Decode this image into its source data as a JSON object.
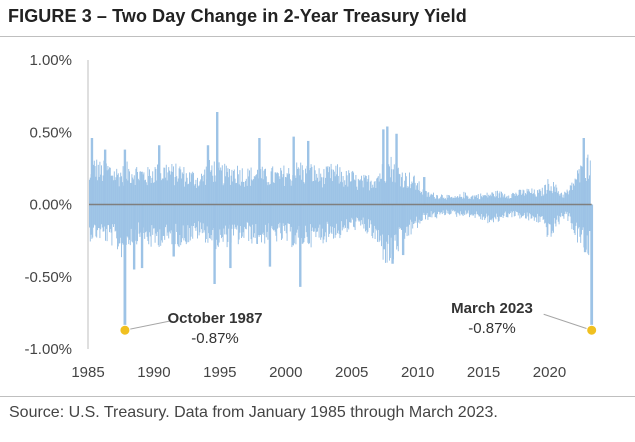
{
  "header": {
    "title": "FIGURE 3 – Two Day Change in 2-Year Treasury Yield"
  },
  "footer": {
    "source": "Source: U.S. Treasury. Data from January 1985 through March 2023."
  },
  "chart_data": {
    "type": "bar",
    "title": "FIGURE 3 – Two Day Change in 2-Year Treasury Yield",
    "xlabel": "",
    "ylabel": "",
    "xlim": [
      1985,
      2023.3
    ],
    "ylim": [
      -1.0,
      1.0
    ],
    "y_ticks": [
      1.0,
      0.5,
      0.0,
      -0.5,
      -1.0
    ],
    "y_tick_labels": [
      "1.00%",
      "0.50%",
      "0.00%",
      "-0.50%",
      "-1.00%"
    ],
    "x_ticks": [
      1985,
      1990,
      1995,
      2000,
      2005,
      2010,
      2015,
      2020
    ],
    "x_tick_labels": [
      "1985",
      "1990",
      "1995",
      "2000",
      "2005",
      "2010",
      "2015",
      "2020"
    ],
    "grid": false,
    "colors": {
      "bars": "#9dc3e6",
      "zero_line": "#7f7f7f",
      "marker": "#f0c020",
      "axis": "#bfbfbf"
    },
    "series": [
      {
        "name": "Two Day Change in 2-Year Treasury Yield (%)",
        "envelope": {
          "years": [
            1985.0,
            1985.5,
            1986.0,
            1986.5,
            1987.0,
            1987.5,
            1988.0,
            1988.5,
            1989.0,
            1989.5,
            1990.0,
            1990.5,
            1991.0,
            1991.5,
            1992.0,
            1992.5,
            1993.0,
            1993.5,
            1994.0,
            1994.5,
            1995.0,
            1995.5,
            1996.0,
            1996.5,
            1997.0,
            1997.5,
            1998.0,
            1998.5,
            1999.0,
            1999.5,
            2000.0,
            2000.5,
            2001.0,
            2001.5,
            2002.0,
            2002.5,
            2003.0,
            2003.5,
            2004.0,
            2004.5,
            2005.0,
            2005.5,
            2006.0,
            2006.5,
            2007.0,
            2007.5,
            2008.0,
            2008.5,
            2009.0,
            2009.5,
            2010.0,
            2010.5,
            2011.0,
            2011.5,
            2012.0,
            2012.5,
            2013.0,
            2013.5,
            2014.0,
            2014.5,
            2015.0,
            2015.5,
            2016.0,
            2016.5,
            2017.0,
            2017.5,
            2018.0,
            2018.5,
            2019.0,
            2019.5,
            2020.0,
            2020.5,
            2021.0,
            2021.5,
            2022.0,
            2022.5,
            2023.0
          ],
          "up": [
            0.17,
            0.35,
            0.3,
            0.32,
            0.28,
            0.27,
            0.3,
            0.3,
            0.28,
            0.26,
            0.3,
            0.28,
            0.32,
            0.28,
            0.3,
            0.25,
            0.25,
            0.22,
            0.3,
            0.33,
            0.29,
            0.28,
            0.3,
            0.29,
            0.26,
            0.27,
            0.28,
            0.25,
            0.27,
            0.25,
            0.29,
            0.26,
            0.33,
            0.28,
            0.3,
            0.26,
            0.26,
            0.29,
            0.28,
            0.24,
            0.25,
            0.2,
            0.21,
            0.22,
            0.26,
            0.32,
            0.35,
            0.3,
            0.24,
            0.23,
            0.18,
            0.1,
            0.09,
            0.08,
            0.08,
            0.06,
            0.06,
            0.09,
            0.07,
            0.08,
            0.08,
            0.09,
            0.1,
            0.09,
            0.09,
            0.1,
            0.11,
            0.12,
            0.1,
            0.12,
            0.2,
            0.14,
            0.09,
            0.12,
            0.24,
            0.3,
            0.38
          ],
          "down": [
            -0.26,
            -0.25,
            -0.25,
            -0.28,
            -0.3,
            -0.38,
            -0.3,
            -0.28,
            -0.27,
            -0.3,
            -0.32,
            -0.29,
            -0.3,
            -0.28,
            -0.3,
            -0.28,
            -0.26,
            -0.24,
            -0.27,
            -0.3,
            -0.33,
            -0.3,
            -0.28,
            -0.29,
            -0.25,
            -0.28,
            -0.3,
            -0.27,
            -0.26,
            -0.27,
            -0.28,
            -0.3,
            -0.32,
            -0.28,
            -0.3,
            -0.27,
            -0.27,
            -0.24,
            -0.25,
            -0.22,
            -0.18,
            -0.18,
            -0.2,
            -0.24,
            -0.32,
            -0.42,
            -0.45,
            -0.35,
            -0.28,
            -0.22,
            -0.17,
            -0.12,
            -0.1,
            -0.1,
            -0.08,
            -0.07,
            -0.09,
            -0.08,
            -0.09,
            -0.1,
            -0.12,
            -0.14,
            -0.14,
            -0.1,
            -0.09,
            -0.09,
            -0.11,
            -0.12,
            -0.13,
            -0.14,
            -0.28,
            -0.18,
            -0.1,
            -0.12,
            -0.26,
            -0.32,
            -0.4
          ]
        },
        "spikes": [
          {
            "year": 1985.3,
            "value": 0.46
          },
          {
            "year": 1986.3,
            "value": 0.38
          },
          {
            "year": 1987.8,
            "value": 0.38
          },
          {
            "year": 1988.5,
            "value": -0.45
          },
          {
            "year": 1989.1,
            "value": -0.44
          },
          {
            "year": 1990.4,
            "value": 0.41
          },
          {
            "year": 1991.5,
            "value": -0.36
          },
          {
            "year": 1994.1,
            "value": 0.41
          },
          {
            "year": 1994.8,
            "value": 0.64
          },
          {
            "year": 1994.6,
            "value": -0.55
          },
          {
            "year": 1995.8,
            "value": -0.44
          },
          {
            "year": 1998.0,
            "value": 0.46
          },
          {
            "year": 1998.8,
            "value": -0.43
          },
          {
            "year": 2000.6,
            "value": 0.47
          },
          {
            "year": 2001.1,
            "value": -0.57
          },
          {
            "year": 2001.7,
            "value": 0.44
          },
          {
            "year": 2007.4,
            "value": 0.52
          },
          {
            "year": 2007.7,
            "value": 0.54
          },
          {
            "year": 2008.1,
            "value": -0.41
          },
          {
            "year": 2008.4,
            "value": 0.49
          },
          {
            "year": 2008.9,
            "value": -0.35
          },
          {
            "year": 2010.5,
            "value": 0.19
          },
          {
            "year": 2022.6,
            "value": 0.46
          },
          {
            "year": 2022.7,
            "value": -0.33
          }
        ]
      }
    ],
    "annotations": [
      {
        "label": "October 1987",
        "value_label": "-0.87%",
        "x": 1987.8,
        "y": -0.87
      },
      {
        "label": "March 2023",
        "value_label": "-0.87%",
        "x": 2023.2,
        "y": -0.87
      }
    ]
  }
}
